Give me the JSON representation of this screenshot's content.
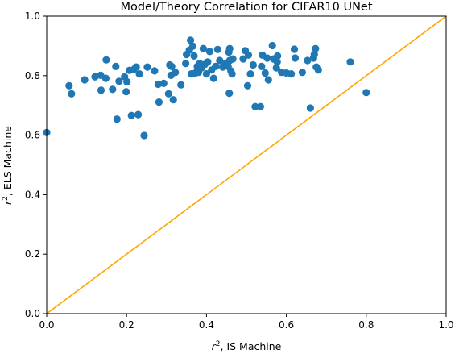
{
  "chart_data": {
    "type": "scatter",
    "title": "Model/Theory Correlation for CIFAR10 UNet",
    "xlabel_base": "r",
    "xlabel_sup": "2",
    "xlabel_rest": ", IS Machine",
    "ylabel_base": "r",
    "ylabel_sup": "2",
    "ylabel_rest": ", ELS Machine",
    "xlim": [
      0.0,
      1.0
    ],
    "ylim": [
      0.0,
      1.0
    ],
    "xticks": [
      "0.0",
      "0.2",
      "0.4",
      "0.6",
      "0.8",
      "1.0"
    ],
    "yticks": [
      "0.0",
      "0.2",
      "0.4",
      "0.6",
      "0.8",
      "1.0"
    ],
    "grid": false,
    "legend": "none",
    "colors": {
      "points": "#1f77b4",
      "reference_line": "#ffa500"
    },
    "reference_line": {
      "x": [
        0.0,
        1.0
      ],
      "y": [
        0.0,
        1.0
      ]
    },
    "points": [
      [
        0.0,
        0.609
      ],
      [
        0.056,
        0.766
      ],
      [
        0.062,
        0.739
      ],
      [
        0.095,
        0.786
      ],
      [
        0.121,
        0.796
      ],
      [
        0.135,
        0.801
      ],
      [
        0.136,
        0.751
      ],
      [
        0.148,
        0.791
      ],
      [
        0.149,
        0.853
      ],
      [
        0.165,
        0.754
      ],
      [
        0.173,
        0.831
      ],
      [
        0.176,
        0.654
      ],
      [
        0.181,
        0.781
      ],
      [
        0.195,
        0.796
      ],
      [
        0.199,
        0.746
      ],
      [
        0.201,
        0.779
      ],
      [
        0.207,
        0.818
      ],
      [
        0.212,
        0.666
      ],
      [
        0.218,
        0.821
      ],
      [
        0.224,
        0.829
      ],
      [
        0.229,
        0.669
      ],
      [
        0.232,
        0.806
      ],
      [
        0.244,
        0.599
      ],
      [
        0.252,
        0.829
      ],
      [
        0.27,
        0.816
      ],
      [
        0.279,
        0.771
      ],
      [
        0.281,
        0.711
      ],
      [
        0.293,
        0.774
      ],
      [
        0.305,
        0.739
      ],
      [
        0.308,
        0.836
      ],
      [
        0.311,
        0.801
      ],
      [
        0.313,
        0.831
      ],
      [
        0.317,
        0.719
      ],
      [
        0.322,
        0.811
      ],
      [
        0.336,
        0.769
      ],
      [
        0.348,
        0.841
      ],
      [
        0.35,
        0.871
      ],
      [
        0.357,
        0.886
      ],
      [
        0.36,
        0.919
      ],
      [
        0.362,
        0.806
      ],
      [
        0.366,
        0.899
      ],
      [
        0.369,
        0.866
      ],
      [
        0.372,
        0.809
      ],
      [
        0.377,
        0.831
      ],
      [
        0.38,
        0.811
      ],
      [
        0.383,
        0.841
      ],
      [
        0.388,
        0.826
      ],
      [
        0.392,
        0.891
      ],
      [
        0.396,
        0.838
      ],
      [
        0.4,
        0.806
      ],
      [
        0.403,
        0.846
      ],
      [
        0.408,
        0.881
      ],
      [
        0.413,
        0.819
      ],
      [
        0.418,
        0.791
      ],
      [
        0.423,
        0.831
      ],
      [
        0.428,
        0.888
      ],
      [
        0.433,
        0.851
      ],
      [
        0.441,
        0.829
      ],
      [
        0.448,
        0.841
      ],
      [
        0.454,
        0.831
      ],
      [
        0.456,
        0.879
      ],
      [
        0.457,
        0.741
      ],
      [
        0.458,
        0.851
      ],
      [
        0.458,
        0.891
      ],
      [
        0.461,
        0.816
      ],
      [
        0.464,
        0.806
      ],
      [
        0.466,
        0.856
      ],
      [
        0.492,
        0.856
      ],
      [
        0.497,
        0.884
      ],
      [
        0.503,
        0.766
      ],
      [
        0.505,
        0.869
      ],
      [
        0.51,
        0.806
      ],
      [
        0.517,
        0.836
      ],
      [
        0.522,
        0.696
      ],
      [
        0.535,
        0.696
      ],
      [
        0.538,
        0.831
      ],
      [
        0.54,
        0.869
      ],
      [
        0.547,
        0.809
      ],
      [
        0.552,
        0.859
      ],
      [
        0.555,
        0.786
      ],
      [
        0.565,
        0.901
      ],
      [
        0.568,
        0.856
      ],
      [
        0.575,
        0.826
      ],
      [
        0.577,
        0.846
      ],
      [
        0.578,
        0.866
      ],
      [
        0.588,
        0.811
      ],
      [
        0.6,
        0.809
      ],
      [
        0.612,
        0.806
      ],
      [
        0.62,
        0.889
      ],
      [
        0.622,
        0.859
      ],
      [
        0.64,
        0.811
      ],
      [
        0.653,
        0.851
      ],
      [
        0.66,
        0.691
      ],
      [
        0.668,
        0.859
      ],
      [
        0.67,
        0.871
      ],
      [
        0.673,
        0.891
      ],
      [
        0.675,
        0.829
      ],
      [
        0.68,
        0.819
      ],
      [
        0.76,
        0.846
      ],
      [
        0.8,
        0.743
      ]
    ]
  }
}
